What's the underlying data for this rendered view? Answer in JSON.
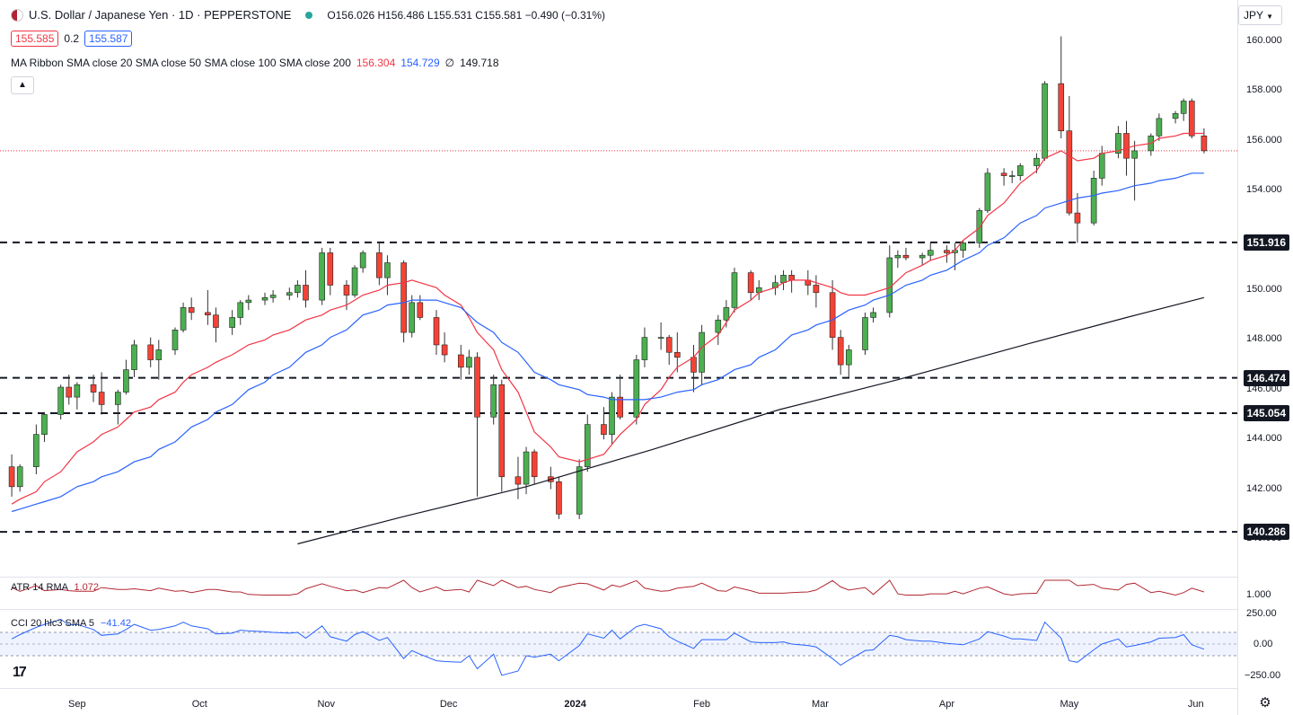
{
  "header": {
    "title": "U.S. Dollar / Japanese Yen · 1D · PEPPERSTONE",
    "ohlc": "O156.026 H156.486 L155.531 C155.581 −0.490 (−0.31%)",
    "bid": "155.585",
    "spread": "0.2",
    "ask": "155.587",
    "flag_icon": "us-jp-flag-icon",
    "status_icon": "market-status-dot-icon"
  },
  "ma_ribbon": {
    "label": "MA Ribbon SMA close 20 SMA close 50 SMA close 100 SMA close 200",
    "v20": "156.304",
    "v50": "154.729",
    "v100": "∅",
    "v200": "149.718"
  },
  "currency": "JPY",
  "colors": {
    "up": "#26a69a",
    "down": "#ef5350",
    "up_fill": "#4caf50",
    "down_fill": "#f44336",
    "sma20": "#f23645",
    "sma50": "#2962ff",
    "sma200": "#131722",
    "atr": "#b22833",
    "cci": "#2962ff"
  },
  "price_axis": [
    "160.000",
    "158.000",
    "156.000",
    "154.000",
    "152.000",
    "150.000",
    "148.000",
    "146.000",
    "144.000",
    "142.000",
    "140.000"
  ],
  "level_labels": [
    "151.916",
    "146.474",
    "145.054",
    "140.286"
  ],
  "time_axis": [
    "Sep",
    "Oct",
    "Nov",
    "Dec",
    "2024",
    "Feb",
    "Mar",
    "Apr",
    "May",
    "Jun"
  ],
  "atr": {
    "label": "ATR 14 RMA",
    "value": "1.072",
    "axis": "1.000"
  },
  "cci": {
    "label": "CCI 20 hlc3 SMA 5",
    "value": "−41.42",
    "axis": [
      "250.00",
      "0.00",
      "−250.00"
    ]
  },
  "chart_data": {
    "type": "candlestick",
    "title": "U.S. Dollar / Japanese Yen · 1D · PEPPERSTONE",
    "ylim": [
      140.0,
      160.0
    ],
    "horizontal_levels": [
      151.916,
      146.474,
      145.054,
      140.286
    ],
    "x": [
      "2023-08-16",
      "2023-08-18",
      "2023-08-22",
      "2023-08-24",
      "2023-08-28",
      "2023-08-30",
      "2023-09-01",
      "2023-09-05",
      "2023-09-07",
      "2023-09-11",
      "2023-09-13",
      "2023-09-15",
      "2023-09-19",
      "2023-09-21",
      "2023-09-25",
      "2023-09-27",
      "2023-09-29",
      "2023-10-03",
      "2023-10-05",
      "2023-10-09",
      "2023-10-11",
      "2023-10-13",
      "2023-10-17",
      "2023-10-19",
      "2023-10-23",
      "2023-10-25",
      "2023-10-27",
      "2023-10-31",
      "2023-11-02",
      "2023-11-06",
      "2023-11-08",
      "2023-11-10",
      "2023-11-14",
      "2023-11-16",
      "2023-11-20",
      "2023-11-22",
      "2023-11-24",
      "2023-11-28",
      "2023-11-30",
      "2023-12-04",
      "2023-12-06",
      "2023-12-08",
      "2023-12-12",
      "2023-12-14",
      "2023-12-18",
      "2023-12-20",
      "2023-12-22",
      "2023-12-26",
      "2023-12-28",
      "2024-01-02",
      "2024-01-04",
      "2024-01-08",
      "2024-01-10",
      "2024-01-12",
      "2024-01-16",
      "2024-01-18",
      "2024-01-22",
      "2024-01-24",
      "2024-01-26",
      "2024-01-30",
      "2024-02-01",
      "2024-02-05",
      "2024-02-07",
      "2024-02-09",
      "2024-02-13",
      "2024-02-15",
      "2024-02-19",
      "2024-02-21",
      "2024-02-23",
      "2024-02-27",
      "2024-02-29",
      "2024-03-04",
      "2024-03-06",
      "2024-03-08",
      "2024-03-12",
      "2024-03-14",
      "2024-03-18",
      "2024-03-20",
      "2024-03-22",
      "2024-03-26",
      "2024-03-28",
      "2024-04-01",
      "2024-04-03",
      "2024-04-05",
      "2024-04-09",
      "2024-04-11",
      "2024-04-15",
      "2024-04-17",
      "2024-04-19",
      "2024-04-23",
      "2024-04-25",
      "2024-04-29",
      "2024-05-01",
      "2024-05-03",
      "2024-05-07",
      "2024-05-09",
      "2024-05-13",
      "2024-05-15",
      "2024-05-17",
      "2024-05-21",
      "2024-05-23",
      "2024-05-27",
      "2024-05-29",
      "2024-05-31",
      "2024-06-03"
    ],
    "ohlc": [
      [
        142.9,
        143.4,
        141.7,
        142.1
      ],
      [
        142.1,
        143.0,
        141.9,
        142.9
      ],
      [
        142.9,
        144.6,
        142.6,
        144.2
      ],
      [
        144.2,
        145.1,
        143.9,
        145.0
      ],
      [
        145.0,
        146.2,
        144.8,
        146.1
      ],
      [
        146.1,
        146.6,
        145.4,
        145.7
      ],
      [
        145.7,
        146.3,
        145.2,
        146.2
      ],
      [
        146.2,
        146.6,
        145.5,
        145.9
      ],
      [
        145.9,
        146.7,
        145.0,
        145.4
      ],
      [
        145.4,
        146.0,
        144.6,
        145.9
      ],
      [
        145.9,
        147.2,
        145.8,
        146.8
      ],
      [
        146.8,
        148.0,
        146.5,
        147.8
      ],
      [
        147.8,
        148.1,
        146.9,
        147.2
      ],
      [
        147.2,
        148.0,
        146.4,
        147.6
      ],
      [
        147.6,
        148.5,
        147.4,
        148.4
      ],
      [
        148.4,
        149.5,
        148.3,
        149.3
      ],
      [
        149.3,
        149.7,
        148.8,
        149.1
      ],
      [
        149.1,
        150.0,
        148.6,
        149.0
      ],
      [
        149.0,
        149.3,
        147.9,
        148.5
      ],
      [
        148.5,
        149.2,
        148.2,
        148.9
      ],
      [
        148.9,
        149.6,
        148.6,
        149.5
      ],
      [
        149.5,
        149.8,
        149.2,
        149.6
      ],
      [
        149.6,
        149.9,
        149.4,
        149.7
      ],
      [
        149.7,
        150.0,
        149.5,
        149.8
      ],
      [
        149.8,
        150.1,
        149.6,
        149.9
      ],
      [
        149.9,
        150.4,
        149.7,
        150.2
      ],
      [
        150.2,
        150.8,
        149.3,
        149.6
      ],
      [
        149.6,
        151.7,
        149.4,
        151.5
      ],
      [
        151.5,
        151.7,
        149.8,
        150.2
      ],
      [
        150.2,
        150.4,
        149.2,
        149.8
      ],
      [
        149.8,
        151.0,
        149.7,
        150.9
      ],
      [
        150.9,
        151.6,
        150.7,
        151.5
      ],
      [
        151.5,
        151.9,
        150.2,
        150.5
      ],
      [
        150.5,
        151.4,
        149.8,
        151.1
      ],
      [
        151.1,
        151.2,
        147.9,
        148.3
      ],
      [
        148.3,
        149.8,
        148.1,
        149.5
      ],
      [
        149.5,
        149.8,
        148.8,
        148.9
      ],
      [
        148.9,
        149.2,
        147.4,
        147.8
      ],
      [
        147.8,
        148.3,
        147.1,
        147.4
      ],
      [
        147.4,
        147.8,
        146.4,
        146.9
      ],
      [
        146.9,
        147.6,
        146.6,
        147.3
      ],
      [
        147.3,
        147.5,
        141.7,
        144.9
      ],
      [
        144.9,
        146.6,
        144.6,
        146.2
      ],
      [
        146.2,
        146.4,
        141.9,
        142.5
      ],
      [
        142.5,
        143.3,
        141.6,
        142.2
      ],
      [
        142.2,
        143.7,
        141.8,
        143.5
      ],
      [
        143.5,
        143.6,
        142.2,
        142.5
      ],
      [
        142.5,
        142.9,
        142.0,
        142.3
      ],
      [
        142.3,
        142.5,
        140.8,
        141.0
      ],
      [
        141.0,
        143.2,
        140.8,
        142.9
      ],
      [
        142.9,
        145.0,
        142.7,
        144.6
      ],
      [
        144.6,
        145.3,
        144.0,
        144.2
      ],
      [
        144.2,
        145.9,
        143.8,
        145.7
      ],
      [
        145.7,
        146.6,
        144.8,
        144.9
      ],
      [
        144.9,
        147.4,
        144.6,
        147.2
      ],
      [
        147.2,
        148.5,
        146.9,
        148.1
      ],
      [
        148.1,
        148.7,
        147.6,
        148.1
      ],
      [
        148.1,
        148.2,
        147.0,
        147.5
      ],
      [
        147.5,
        148.3,
        146.7,
        147.3
      ],
      [
        147.3,
        147.8,
        145.9,
        146.7
      ],
      [
        146.7,
        148.6,
        146.2,
        148.3
      ],
      [
        148.3,
        149.0,
        147.8,
        148.8
      ],
      [
        148.8,
        149.6,
        148.5,
        149.3
      ],
      [
        149.3,
        150.9,
        149.1,
        150.7
      ],
      [
        150.7,
        150.8,
        149.6,
        149.9
      ],
      [
        149.9,
        150.4,
        149.6,
        150.1
      ],
      [
        150.1,
        150.6,
        149.8,
        150.3
      ],
      [
        150.3,
        150.8,
        150.0,
        150.6
      ],
      [
        150.6,
        150.8,
        149.9,
        150.4
      ],
      [
        150.4,
        150.8,
        149.8,
        150.2
      ],
      [
        150.2,
        150.6,
        149.3,
        149.9
      ],
      [
        149.9,
        150.4,
        147.6,
        148.1
      ],
      [
        148.1,
        148.4,
        146.6,
        147.0
      ],
      [
        147.0,
        147.8,
        146.5,
        147.6
      ],
      [
        147.6,
        149.1,
        147.4,
        148.9
      ],
      [
        148.9,
        149.3,
        148.7,
        149.1
      ],
      [
        149.1,
        151.8,
        148.9,
        151.3
      ],
      [
        151.3,
        151.6,
        150.9,
        151.4
      ],
      [
        151.4,
        151.7,
        151.2,
        151.3
      ],
      [
        151.3,
        151.5,
        151.0,
        151.4
      ],
      [
        151.4,
        151.9,
        151.2,
        151.6
      ],
      [
        151.6,
        151.8,
        151.1,
        151.5
      ],
      [
        151.5,
        151.9,
        150.8,
        151.6
      ],
      [
        151.6,
        152.0,
        151.3,
        151.9
      ],
      [
        151.9,
        153.3,
        151.7,
        153.2
      ],
      [
        153.2,
        154.9,
        153.1,
        154.7
      ],
      [
        154.7,
        154.9,
        154.2,
        154.6
      ],
      [
        154.6,
        154.8,
        154.3,
        154.6
      ],
      [
        154.6,
        155.1,
        154.4,
        155.0
      ],
      [
        155.0,
        155.5,
        154.7,
        155.3
      ],
      [
        155.3,
        158.4,
        155.2,
        158.3
      ],
      [
        158.3,
        160.2,
        156.1,
        156.4
      ],
      [
        156.4,
        157.8,
        153.0,
        153.1
      ],
      [
        153.1,
        153.9,
        151.9,
        152.7
      ],
      [
        152.7,
        154.8,
        152.6,
        154.5
      ],
      [
        154.5,
        155.8,
        154.2,
        155.5
      ],
      [
        155.5,
        156.6,
        155.3,
        156.3
      ],
      [
        156.3,
        156.8,
        154.6,
        155.3
      ],
      [
        155.3,
        156.0,
        153.6,
        155.6
      ],
      [
        155.6,
        156.3,
        155.4,
        156.2
      ],
      [
        156.2,
        157.1,
        156.0,
        156.9
      ],
      [
        156.9,
        157.2,
        156.7,
        157.1
      ],
      [
        157.1,
        157.7,
        156.8,
        157.6
      ],
      [
        157.6,
        157.7,
        156.1,
        156.2
      ],
      [
        156.2,
        156.5,
        155.5,
        155.6
      ]
    ],
    "series": [
      {
        "name": "SMA close 20",
        "values": [
          141.4,
          141.6,
          141.9,
          142.3,
          142.7,
          143.1,
          143.5,
          143.9,
          144.2,
          144.5,
          144.8,
          145.1,
          145.3,
          145.6,
          145.9,
          146.3,
          146.6,
          146.9,
          147.1,
          147.4,
          147.6,
          147.8,
          148.0,
          148.2,
          148.4,
          148.6,
          148.8,
          149.0,
          149.2,
          149.4,
          149.6,
          149.8,
          150.0,
          150.2,
          150.3,
          150.4,
          150.3,
          150.1,
          149.8,
          149.4,
          148.9,
          148.3,
          147.6,
          146.8,
          145.9,
          145.1,
          144.3,
          143.7,
          143.3,
          143.1,
          143.2,
          143.4,
          143.8,
          144.2,
          144.8,
          145.4,
          146.0,
          146.5,
          146.9,
          147.3,
          147.7,
          148.2,
          148.7,
          149.2,
          149.6,
          149.9,
          150.1,
          150.3,
          150.4,
          150.4,
          150.3,
          150.1,
          149.9,
          149.8,
          149.8,
          149.9,
          150.1,
          150.4,
          150.7,
          151.0,
          151.2,
          151.4,
          151.6,
          152.0,
          152.5,
          153.0,
          153.5,
          153.9,
          154.3,
          154.8,
          155.3,
          155.6,
          155.4,
          155.2,
          155.3,
          155.5,
          155.6,
          155.7,
          155.8,
          155.9,
          156.1,
          156.2,
          156.3,
          156.3,
          156.3
        ]
      },
      {
        "name": "SMA close 50",
        "values": [
          141.1,
          141.2,
          141.4,
          141.5,
          141.7,
          141.9,
          142.1,
          142.3,
          142.5,
          142.7,
          142.9,
          143.1,
          143.3,
          143.6,
          143.9,
          144.2,
          144.5,
          144.8,
          145.1,
          145.4,
          145.7,
          146.0,
          146.3,
          146.6,
          146.9,
          147.2,
          147.5,
          147.8,
          148.1,
          148.4,
          148.7,
          149.0,
          149.2,
          149.4,
          149.5,
          149.6,
          149.6,
          149.6,
          149.5,
          149.3,
          149.0,
          148.7,
          148.3,
          147.9,
          147.5,
          147.1,
          146.7,
          146.4,
          146.2,
          146.0,
          145.8,
          145.7,
          145.6,
          145.6,
          145.6,
          145.6,
          145.7,
          145.8,
          145.9,
          146.0,
          146.2,
          146.4,
          146.6,
          146.8,
          147.0,
          147.3,
          147.6,
          147.9,
          148.2,
          148.4,
          148.6,
          148.8,
          149.0,
          149.2,
          149.4,
          149.6,
          149.8,
          150.0,
          150.2,
          150.4,
          150.6,
          150.8,
          151.0,
          151.2,
          151.5,
          151.8,
          152.1,
          152.4,
          152.7,
          153.0,
          153.3,
          153.5,
          153.6,
          153.7,
          153.8,
          153.9,
          154.0,
          154.1,
          154.2,
          154.3,
          154.4,
          154.5,
          154.6,
          154.7,
          154.7
        ]
      },
      {
        "name": "SMA close 200",
        "values": [
          null,
          null,
          null,
          null,
          null,
          null,
          null,
          null,
          null,
          null,
          null,
          null,
          null,
          null,
          null,
          null,
          null,
          null,
          null,
          null,
          null,
          null,
          null,
          null,
          null,
          null,
          null,
          null,
          null,
          null,
          null,
          null,
          null,
          null,
          null,
          null,
          null,
          null,
          null,
          null,
          null,
          null,
          null,
          null,
          null,
          null,
          null,
          null,
          null,
          null,
          null,
          null,
          null,
          null,
          null,
          null,
          null,
          null,
          null,
          null,
          null,
          null,
          null,
          null,
          null,
          null,
          null,
          null,
          null,
          null,
          null,
          null,
          null,
          null,
          null,
          null,
          null,
          null,
          null,
          null,
          null,
          null,
          null,
          null,
          null,
          null,
          null,
          null,
          null,
          null,
          null,
          null,
          null,
          null,
          null,
          null,
          null,
          null,
          null,
          null,
          null,
          null,
          null,
          null,
          149.7
        ]
      }
    ]
  }
}
